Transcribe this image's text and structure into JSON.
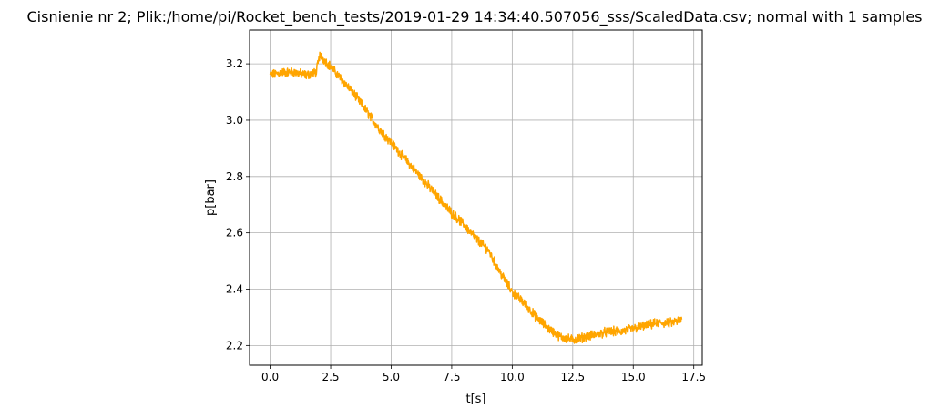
{
  "chart_data": {
    "type": "line",
    "title": "Cisnienie nr 2; Plik:/home/pi/Rocket_bench_tests/2019-01-29 14:34:40.507056_sss/ScaledData.csv; normal with 1 samples",
    "xlabel": "t[s]",
    "ylabel": "p[bar]",
    "xlim": [
      -0.85,
      17.85
    ],
    "ylim": [
      2.13,
      3.32
    ],
    "xticks": [
      0.0,
      2.5,
      5.0,
      7.5,
      10.0,
      12.5,
      15.0,
      17.5
    ],
    "xtick_labels": [
      "0.0",
      "2.5",
      "5.0",
      "7.5",
      "10.0",
      "12.5",
      "15.0",
      "17.5"
    ],
    "yticks": [
      2.2,
      2.4,
      2.6,
      2.8,
      3.0,
      3.2
    ],
    "ytick_labels": [
      "2.2",
      "2.4",
      "2.6",
      "2.8",
      "3.0",
      "3.2"
    ],
    "grid": true,
    "line_color": "#ffa500",
    "series": [
      {
        "x": [
          0.0,
          0.5,
          1.0,
          1.5,
          1.9,
          2.05,
          2.5,
          3.0,
          3.5,
          4.0,
          4.5,
          5.0,
          5.5,
          6.0,
          6.5,
          7.0,
          7.5,
          8.0,
          8.5,
          9.0,
          9.5,
          10.0,
          10.5,
          11.0,
          11.5,
          12.0,
          12.5,
          13.0,
          13.5,
          14.0,
          14.5,
          15.0,
          15.5,
          16.0,
          16.5,
          17.0
        ],
        "y": [
          3.16,
          3.17,
          3.17,
          3.16,
          3.17,
          3.23,
          3.19,
          3.14,
          3.09,
          3.03,
          2.97,
          2.92,
          2.87,
          2.82,
          2.77,
          2.72,
          2.67,
          2.63,
          2.58,
          2.54,
          2.46,
          2.39,
          2.35,
          2.3,
          2.26,
          2.23,
          2.22,
          2.23,
          2.24,
          2.25,
          2.25,
          2.26,
          2.27,
          2.28,
          2.28,
          2.29
        ]
      }
    ]
  }
}
